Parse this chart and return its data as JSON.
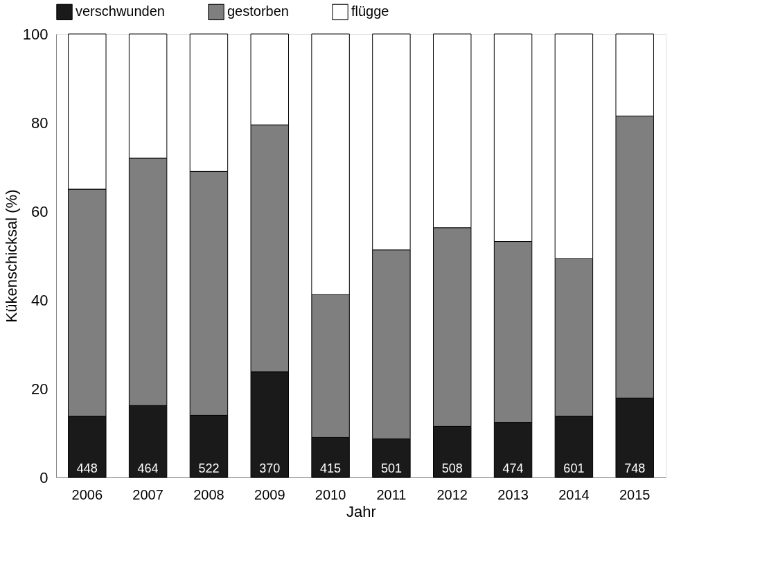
{
  "chart_data": {
    "type": "bar",
    "stacked": true,
    "xlabel": "Jahr",
    "ylabel": "Kükenschicksal (%)",
    "categories": [
      "2006",
      "2007",
      "2008",
      "2009",
      "2010",
      "2011",
      "2012",
      "2013",
      "2014",
      "2015"
    ],
    "series": [
      {
        "name": "verschwunden",
        "color": "#1a1a1a",
        "values": [
          13.8,
          16.2,
          14,
          23.8,
          9,
          8.7,
          11.5,
          12.4,
          13.8,
          17.9
        ]
      },
      {
        "name": "gestorben",
        "color": "#7f7f7f",
        "values": [
          51.2,
          55.8,
          55,
          55.7,
          32.2,
          42.6,
          44.8,
          40.8,
          35.5,
          63.6
        ]
      },
      {
        "name": "flügge",
        "color": "#ffffff",
        "values": [
          35,
          28,
          31,
          20.5,
          58.8,
          48.7,
          43.7,
          46.8,
          50.7,
          18.5
        ]
      }
    ],
    "ylim": [
      0,
      100
    ],
    "yticks": [
      0,
      20,
      40,
      60,
      80,
      100
    ],
    "grid": false,
    "legend": "top",
    "annotations": [
      {
        "text": "448",
        "x": "2006",
        "y": 0
      },
      {
        "text": "464",
        "x": "2007",
        "y": 0
      },
      {
        "text": "522",
        "x": "2008",
        "y": 0
      },
      {
        "text": "370",
        "x": "2009",
        "y": 0
      },
      {
        "text": "415",
        "x": "2010",
        "y": 0
      },
      {
        "text": "501",
        "x": "2011",
        "y": 0
      },
      {
        "text": "508",
        "x": "2012",
        "y": 0
      },
      {
        "text": "474",
        "x": "2013",
        "y": 0
      },
      {
        "text": "601",
        "x": "2014",
        "y": 0
      },
      {
        "text": "748",
        "x": "2015",
        "y": 0
      }
    ]
  }
}
